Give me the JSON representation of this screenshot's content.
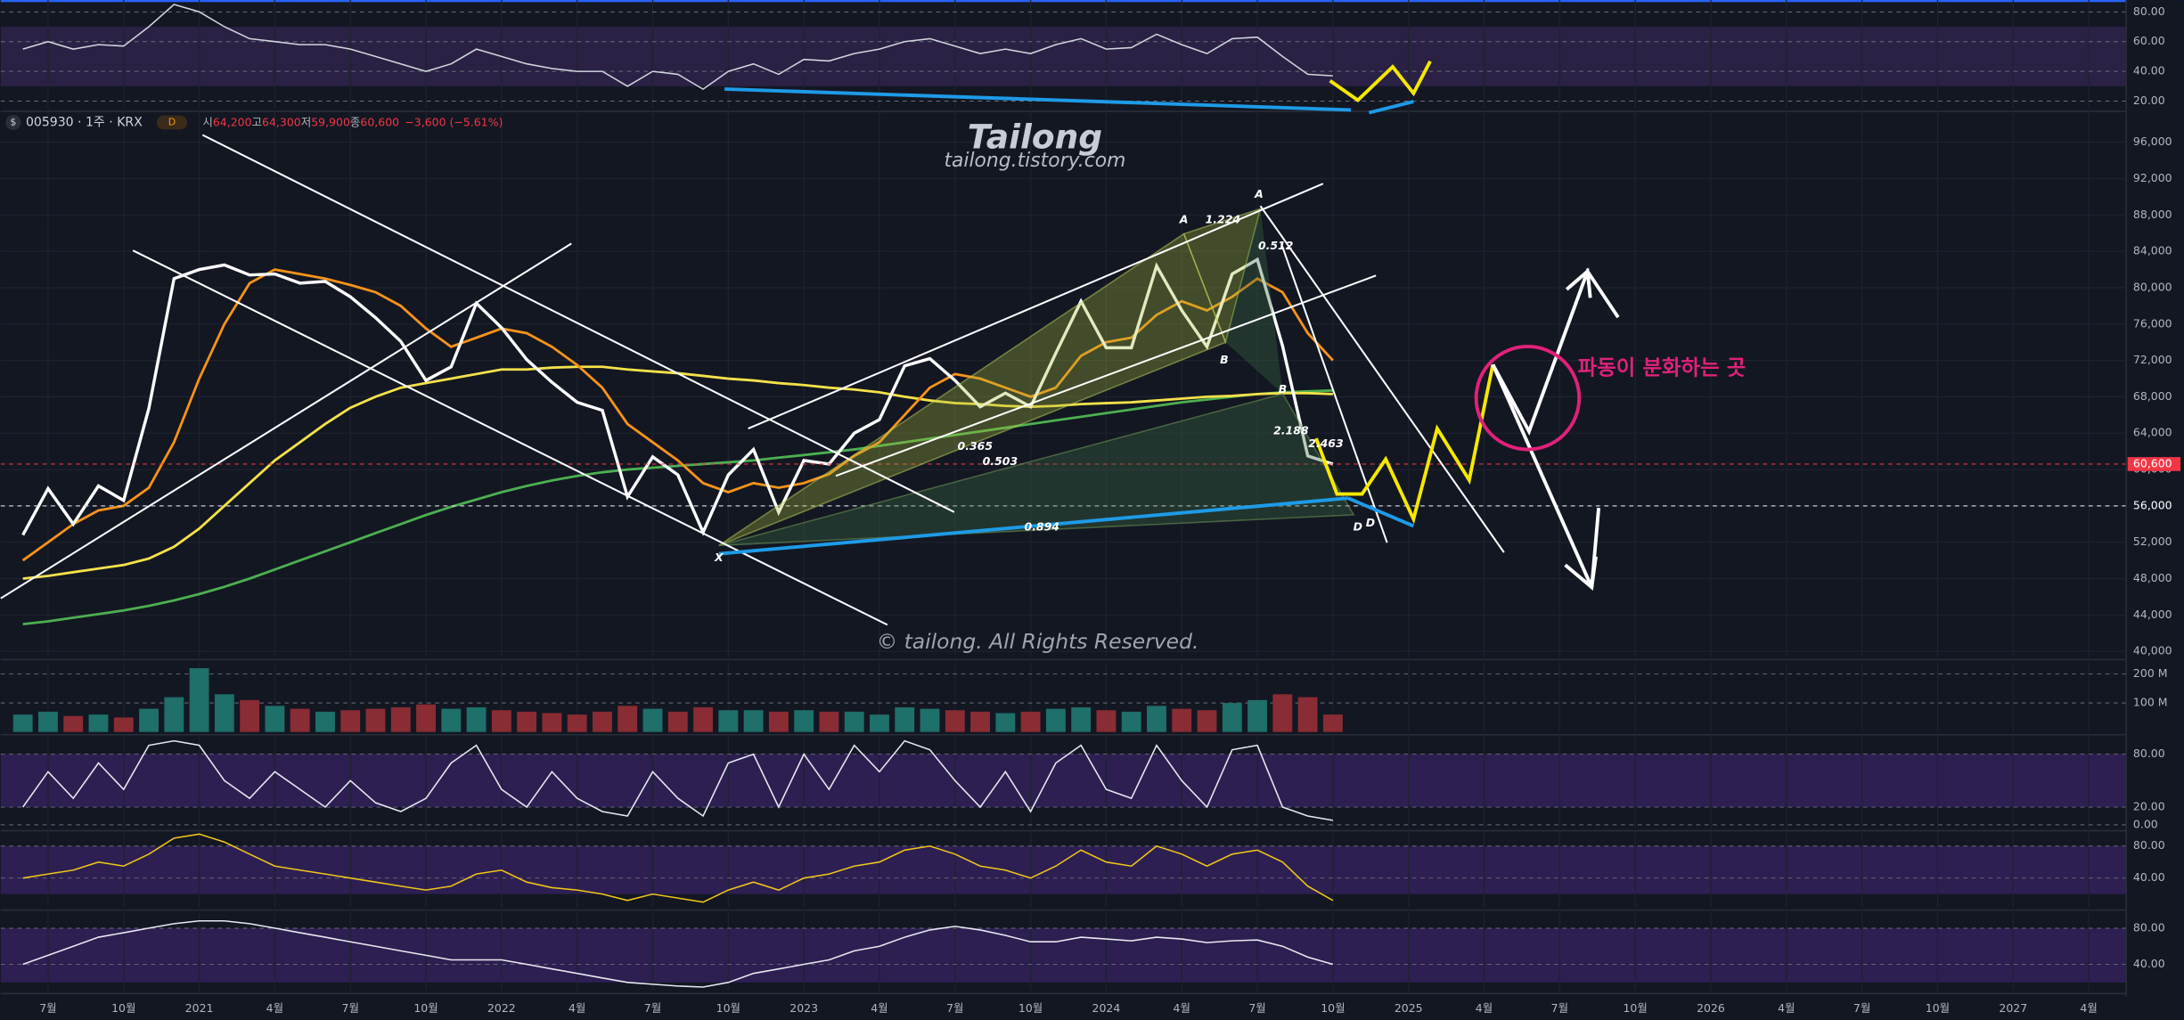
{
  "header": {
    "currency_icon": "$",
    "symbol": "005930 · 1주 · KRX",
    "badge": "D",
    "ohlc": [
      {
        "label": "시",
        "value": "64,200"
      },
      {
        "label": "고",
        "value": "64,300"
      },
      {
        "label": "저",
        "value": "59,900"
      },
      {
        "label": "종",
        "value": "60,600"
      }
    ],
    "change": "−3,600 (−5.61%)"
  },
  "watermark": {
    "title": "Tailong",
    "subtitle": "tailong.tistory.com",
    "copyright": "© tailong. All Rights Reserved."
  },
  "callout": "파동이 분화하는 곳",
  "pattern_labels": [
    "A",
    "1.224",
    "A",
    "0.512",
    "B",
    "B",
    "2.188",
    "2.463",
    "0.365",
    "0.503",
    "0.894",
    "X",
    "D",
    "D"
  ],
  "chart_data": [
    {
      "type": "line",
      "ylim": [
        15,
        88
      ],
      "yticks": [
        {
          "value": 80,
          "label": "80.00"
        },
        {
          "value": 60,
          "label": "60.00"
        },
        {
          "value": 40,
          "label": "40.00"
        },
        {
          "value": 20,
          "label": "20.00"
        }
      ],
      "band": [
        30,
        70
      ],
      "band_color": "#2a2145",
      "series": [
        {
          "name": "RSI",
          "color": "#d1d4dc",
          "values": [
            55,
            60,
            55,
            58,
            57,
            70,
            85,
            80,
            70,
            62,
            60,
            58,
            58,
            55,
            50,
            45,
            40,
            45,
            55,
            50,
            45,
            42,
            40,
            40,
            30,
            40,
            38,
            28,
            40,
            45,
            38,
            48,
            47,
            52,
            55,
            60,
            62,
            57,
            52,
            55,
            52,
            58,
            62,
            55,
            56,
            65,
            58,
            52,
            62,
            63,
            50,
            38,
            37
          ]
        }
      ]
    },
    {
      "type": "line",
      "grid": true,
      "ylim": [
        39400,
        99400
      ],
      "yticks": [
        {
          "value": 40000,
          "label": "40,000"
        },
        {
          "value": 44000,
          "label": "44,000"
        },
        {
          "value": 48000,
          "label": "48,000"
        },
        {
          "value": 52000,
          "label": "52,000"
        },
        {
          "value": 56000,
          "label": "56,000"
        },
        {
          "value": 60000,
          "label": "60,000"
        },
        {
          "value": 64000,
          "label": "64,000"
        },
        {
          "value": 68000,
          "label": "68,000"
        },
        {
          "value": 72000,
          "label": "72,000"
        },
        {
          "value": 76000,
          "label": "76,000"
        },
        {
          "value": 80000,
          "label": "80,000"
        },
        {
          "value": 84000,
          "label": "84,000"
        },
        {
          "value": 88000,
          "label": "88,000"
        },
        {
          "value": 92000,
          "label": "92,000"
        },
        {
          "value": 96000,
          "label": "96,000"
        }
      ],
      "x": [
        "2020-06",
        "2020-07",
        "2020-08",
        "2020-09",
        "2020-10",
        "2020-11",
        "2020-12",
        "2021-01",
        "2021-02",
        "2021-03",
        "2021-04",
        "2021-05",
        "2021-06",
        "2021-07",
        "2021-08",
        "2021-09",
        "2021-10",
        "2021-11",
        "2021-12",
        "2022-01",
        "2022-02",
        "2022-03",
        "2022-04",
        "2022-05",
        "2022-06",
        "2022-07",
        "2022-08",
        "2022-09",
        "2022-10",
        "2022-11",
        "2022-12",
        "2023-01",
        "2023-02",
        "2023-03",
        "2023-04",
        "2023-05",
        "2023-06",
        "2023-07",
        "2023-08",
        "2023-09",
        "2023-10",
        "2023-11",
        "2023-12",
        "2024-01",
        "2024-02",
        "2024-03",
        "2024-04",
        "2024-05",
        "2024-06",
        "2024-07",
        "2024-08",
        "2024-09",
        "2024-10"
      ],
      "xticks": [
        {
          "value": "2020-07",
          "label": "7월"
        },
        {
          "value": "2020-10",
          "label": "10월"
        },
        {
          "value": "2021-01",
          "label": "2021"
        },
        {
          "value": "2021-04",
          "label": "4월"
        },
        {
          "value": "2021-07",
          "label": "7월"
        },
        {
          "value": "2021-10",
          "label": "10월"
        },
        {
          "value": "2022-01",
          "label": "2022"
        },
        {
          "value": "2022-04",
          "label": "4월"
        },
        {
          "value": "2022-07",
          "label": "7월"
        },
        {
          "value": "2022-10",
          "label": "10월"
        },
        {
          "value": "2023-01",
          "label": "2023"
        },
        {
          "value": "2023-04",
          "label": "4월"
        },
        {
          "value": "2023-07",
          "label": "7월"
        },
        {
          "value": "2023-10",
          "label": "10월"
        },
        {
          "value": "2024-01",
          "label": "2024"
        },
        {
          "value": "2024-04",
          "label": "4월"
        },
        {
          "value": "2024-07",
          "label": "7월"
        },
        {
          "value": "2024-10",
          "label": "10월"
        },
        {
          "value": "2025-01",
          "label": "2025"
        },
        {
          "value": "2025-04",
          "label": "4월"
        },
        {
          "value": "2025-07",
          "label": "7월"
        },
        {
          "value": "2025-10",
          "label": "10월"
        },
        {
          "value": "2026-01",
          "label": "2026"
        },
        {
          "value": "2026-04",
          "label": "4월"
        },
        {
          "value": "2026-07",
          "label": "7월"
        },
        {
          "value": "2026-10",
          "label": "10월"
        },
        {
          "value": "2027-01",
          "label": "2027"
        },
        {
          "value": "2027-04",
          "label": "4월"
        }
      ],
      "price_lines": [
        {
          "value": 60600,
          "label": "60,600",
          "color": "#f23645"
        },
        {
          "value": 56000,
          "label": "56,000",
          "color": "#d1d4dc"
        }
      ],
      "series": [
        {
          "name": "Green MA",
          "color": "#4caf50",
          "values": [
            43000,
            43300,
            43700,
            44100,
            44500,
            45000,
            45600,
            46300,
            47100,
            48000,
            49000,
            50000,
            51000,
            52000,
            53000,
            54000,
            55000,
            55900,
            56700,
            57500,
            58200,
            58800,
            59300,
            59700,
            60000,
            60200,
            60400,
            60600,
            60800,
            61000,
            61300,
            61600,
            61900,
            62200,
            62600,
            63000,
            63400,
            63800,
            64200,
            64600,
            65000,
            65400,
            65800,
            66200,
            66600,
            67000,
            67400,
            67700,
            68000,
            68300,
            68500,
            68600,
            68700
          ]
        },
        {
          "name": "Yellow MA",
          "color": "#f5e14a",
          "values": [
            48000,
            48300,
            48700,
            49100,
            49500,
            50200,
            51500,
            53500,
            56000,
            58500,
            61000,
            63000,
            65000,
            66800,
            68000,
            69000,
            69500,
            70000,
            70500,
            71000,
            71000,
            71200,
            71300,
            71300,
            71000,
            70800,
            70600,
            70300,
            70000,
            69800,
            69500,
            69300,
            69000,
            68800,
            68500,
            68000,
            67600,
            67300,
            67200,
            67000,
            66900,
            67000,
            67200,
            67300,
            67400,
            67600,
            67800,
            68000,
            68100,
            68300,
            68400,
            68400,
            68300
          ]
        },
        {
          "name": "Orange MA",
          "color": "#f7931a",
          "values": [
            50000,
            52000,
            54000,
            55500,
            56000,
            58000,
            63000,
            70000,
            76000,
            80500,
            82000,
            81500,
            81000,
            80300,
            79500,
            78000,
            75500,
            73500,
            74500,
            75500,
            75000,
            73500,
            71500,
            69000,
            65000,
            63000,
            61000,
            58500,
            57500,
            58500,
            58000,
            58500,
            59500,
            61500,
            63000,
            66000,
            69000,
            70500,
            70000,
            69000,
            68000,
            69000,
            72500,
            74000,
            74500,
            77000,
            78500,
            77500,
            79000,
            81000,
            79500,
            75000,
            72000
          ]
        },
        {
          "name": "Close",
          "color": "#ffffff",
          "values": [
            52800,
            57900,
            54000,
            58200,
            56600,
            66700,
            81000,
            82000,
            82500,
            81400,
            81500,
            80500,
            80700,
            79000,
            76700,
            74100,
            69800,
            71300,
            78300,
            75600,
            72100,
            69600,
            67400,
            66500,
            57000,
            61400,
            59400,
            53100,
            59400,
            62200,
            55300,
            61000,
            60600,
            64000,
            65500,
            71400,
            72200,
            69800,
            66900,
            68400,
            66900,
            72800,
            78500,
            73400,
            73400,
            82400,
            77500,
            73500,
            81500,
            83100,
            73600,
            61500,
            60600
          ]
        }
      ]
    },
    {
      "type": "bar",
      "ylim": [
        0,
        240000000
      ],
      "yticks": [
        {
          "value": 200000000,
          "label": "200 M"
        },
        {
          "value": 100000000,
          "label": "100 M"
        }
      ],
      "colors": {
        "up": "#1f6f6a",
        "down": "#8a2c33"
      },
      "values": [
        60000000,
        70000000,
        55000000,
        60000000,
        50000000,
        80000000,
        120000000,
        220000000,
        130000000,
        110000000,
        90000000,
        80000000,
        70000000,
        75000000,
        80000000,
        85000000,
        95000000,
        80000000,
        85000000,
        75000000,
        70000000,
        65000000,
        60000000,
        70000000,
        90000000,
        80000000,
        70000000,
        85000000,
        75000000,
        75000000,
        70000000,
        75000000,
        70000000,
        70000000,
        60000000,
        85000000,
        80000000,
        75000000,
        70000000,
        65000000,
        70000000,
        80000000,
        85000000,
        75000000,
        70000000,
        90000000,
        80000000,
        75000000,
        100000000,
        110000000,
        130000000,
        120000000,
        60000000
      ]
    },
    {
      "type": "line",
      "ylim": [
        -3.6,
        102
      ],
      "yticks": [
        {
          "value": 80,
          "label": "80.00"
        },
        {
          "value": 20,
          "label": "20.00"
        },
        {
          "value": 0,
          "label": "0.00"
        }
      ],
      "band": [
        20,
        80
      ],
      "band_color": "#2d1f52",
      "series": [
        {
          "name": "Stoch",
          "color": "#e8e8ef",
          "values": [
            20,
            60,
            30,
            70,
            40,
            90,
            95,
            90,
            50,
            30,
            60,
            40,
            20,
            50,
            25,
            15,
            30,
            70,
            90,
            40,
            20,
            60,
            30,
            15,
            10,
            60,
            30,
            10,
            70,
            80,
            20,
            80,
            40,
            90,
            60,
            95,
            85,
            50,
            20,
            60,
            15,
            70,
            90,
            40,
            30,
            90,
            50,
            20,
            85,
            90,
            20,
            10,
            5
          ]
        }
      ]
    },
    {
      "type": "line",
      "ylim": [
        3.5,
        97.4
      ],
      "yticks": [
        {
          "value": 80,
          "label": "80.00"
        },
        {
          "value": 40,
          "label": "40.00"
        }
      ],
      "band": [
        20,
        80
      ],
      "band_color": "#2d1f52",
      "series": [
        {
          "name": "Oscillator",
          "color": "#f0c419",
          "values": [
            40,
            45,
            50,
            60,
            55,
            70,
            90,
            95,
            85,
            70,
            55,
            50,
            45,
            40,
            35,
            30,
            25,
            30,
            45,
            50,
            35,
            28,
            25,
            20,
            12,
            20,
            15,
            10,
            25,
            35,
            25,
            40,
            45,
            55,
            60,
            75,
            80,
            70,
            55,
            50,
            40,
            55,
            75,
            60,
            55,
            80,
            70,
            55,
            70,
            75,
            60,
            30,
            12
          ]
        }
      ]
    },
    {
      "type": "line",
      "ylim": [
        10.8,
        97
      ],
      "yticks": [
        {
          "value": 80,
          "label": "80.00"
        },
        {
          "value": 40,
          "label": "40.00"
        }
      ],
      "band": [
        20,
        80
      ],
      "band_color": "#2d1f52",
      "series": [
        {
          "name": "Momentum",
          "color": "#e8e8ef",
          "values": [
            40,
            50,
            60,
            70,
            75,
            80,
            85,
            88,
            88,
            85,
            80,
            75,
            70,
            65,
            60,
            55,
            50,
            45,
            45,
            45,
            40,
            35,
            30,
            25,
            20,
            18,
            16,
            15,
            20,
            30,
            35,
            40,
            45,
            55,
            60,
            70,
            78,
            82,
            78,
            72,
            65,
            65,
            70,
            68,
            66,
            70,
            68,
            64,
            66,
            67,
            60,
            48,
            40
          ]
        }
      ]
    }
  ]
}
